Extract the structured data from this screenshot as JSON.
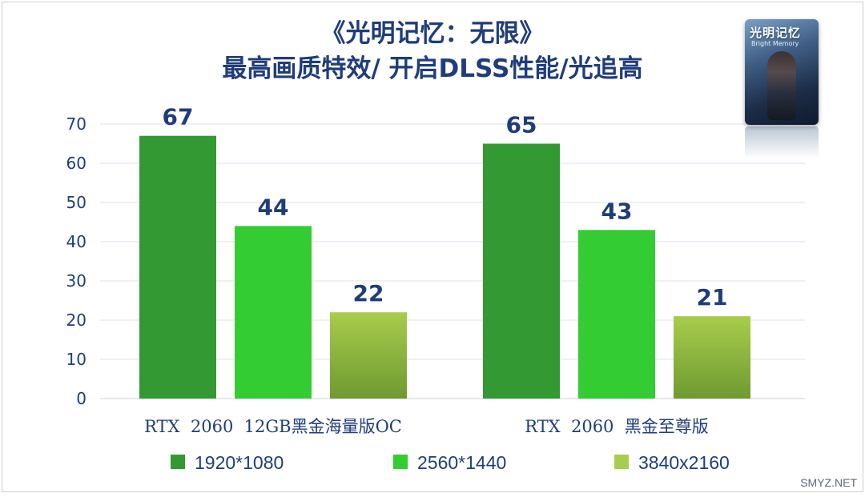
{
  "title_line1": "《光明记忆：无限》",
  "title_line2": "最高画质特效/ 开启DLSS性能/光追高",
  "cover": {
    "title": "光明记忆",
    "subtitle": "Bright Memory"
  },
  "watermark": "SMYZ.NET",
  "colors": {
    "series1": "#339933",
    "series2": "#33cc33",
    "series3_top": "#a8cc4c",
    "series3_bottom": "#6e9a30",
    "title": "#1f3d7a",
    "data_label": "#1f3d7a",
    "grid": "#d9e3ef"
  },
  "chart_data": {
    "type": "bar",
    "title": "《光明记忆：无限》 最高画质特效/ 开启DLSS性能/光追高",
    "categories": [
      "RTX  2060  12GB黑金海量版OC",
      "RTX  2060  黑金至尊版"
    ],
    "series": [
      {
        "name": "1920*1080",
        "values": [
          67,
          65
        ]
      },
      {
        "name": "2560*1440",
        "values": [
          44,
          43
        ]
      },
      {
        "name": "3840x2160",
        "values": [
          22,
          21
        ]
      }
    ],
    "ylim": [
      0,
      70
    ],
    "yticks": [
      0,
      10,
      20,
      30,
      40,
      50,
      60,
      70
    ],
    "grid": true,
    "legend": "bottom",
    "data_labels": true
  }
}
